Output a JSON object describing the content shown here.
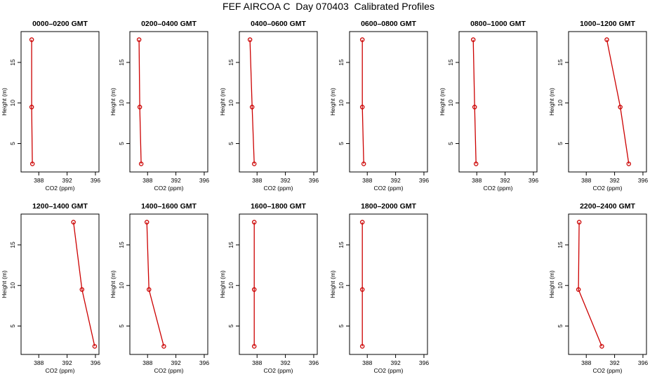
{
  "figure_title": "FEF AIRCOA C  Day 070403  Calibrated Profiles",
  "chart_data": [
    {
      "type": "line",
      "title": "0000–0200 GMT",
      "xlabel": "CO2 (ppm)",
      "ylabel": "Height (m)",
      "xlim": [
        385.5,
        396.5
      ],
      "ylim": [
        1.5,
        18.8
      ],
      "xticks": [
        388,
        392,
        396
      ],
      "yticks": [
        5,
        10,
        15
      ],
      "points": [
        {
          "x": 387.0,
          "y": 17.8
        },
        {
          "x": 387.0,
          "y": 9.5
        },
        {
          "x": 387.1,
          "y": 2.5
        }
      ]
    },
    {
      "type": "line",
      "title": "0200–0400 GMT",
      "xlabel": "CO2 (ppm)",
      "ylabel": "Height (m)",
      "xlim": [
        385.5,
        396.5
      ],
      "ylim": [
        1.5,
        18.8
      ],
      "xticks": [
        388,
        392,
        396
      ],
      "yticks": [
        5,
        10,
        15
      ],
      "points": [
        {
          "x": 386.8,
          "y": 17.8
        },
        {
          "x": 386.9,
          "y": 9.5
        },
        {
          "x": 387.1,
          "y": 2.5
        }
      ]
    },
    {
      "type": "line",
      "title": "0400–0600 GMT",
      "xlabel": "CO2 (ppm)",
      "ylabel": "Height (m)",
      "xlim": [
        385.5,
        396.5
      ],
      "ylim": [
        1.5,
        18.8
      ],
      "xticks": [
        388,
        392,
        396
      ],
      "yticks": [
        5,
        10,
        15
      ],
      "points": [
        {
          "x": 387.0,
          "y": 17.8
        },
        {
          "x": 387.3,
          "y": 9.5
        },
        {
          "x": 387.6,
          "y": 2.5
        }
      ]
    },
    {
      "type": "line",
      "title": "0600–0800 GMT",
      "xlabel": "CO2 (ppm)",
      "ylabel": "Height (m)",
      "xlim": [
        385.5,
        396.5
      ],
      "ylim": [
        1.5,
        18.8
      ],
      "xticks": [
        388,
        392,
        396
      ],
      "yticks": [
        5,
        10,
        15
      ],
      "points": [
        {
          "x": 387.3,
          "y": 17.8
        },
        {
          "x": 387.3,
          "y": 9.5
        },
        {
          "x": 387.5,
          "y": 2.5
        }
      ]
    },
    {
      "type": "line",
      "title": "0800–1000 GMT",
      "xlabel": "CO2 (ppm)",
      "ylabel": "Height (m)",
      "xlim": [
        385.5,
        396.5
      ],
      "ylim": [
        1.5,
        18.8
      ],
      "xticks": [
        388,
        392,
        396
      ],
      "yticks": [
        5,
        10,
        15
      ],
      "points": [
        {
          "x": 387.5,
          "y": 17.8
        },
        {
          "x": 387.7,
          "y": 9.5
        },
        {
          "x": 387.9,
          "y": 2.5
        }
      ]
    },
    {
      "type": "line",
      "title": "1000–1200 GMT",
      "xlabel": "CO2 (ppm)",
      "ylabel": "Height (m)",
      "xlim": [
        385.5,
        396.5
      ],
      "ylim": [
        1.5,
        18.8
      ],
      "xticks": [
        388,
        392,
        396
      ],
      "yticks": [
        5,
        10,
        15
      ],
      "points": [
        {
          "x": 390.9,
          "y": 17.8
        },
        {
          "x": 392.8,
          "y": 9.5
        },
        {
          "x": 394.0,
          "y": 2.5
        }
      ]
    },
    {
      "type": "line",
      "title": "1200–1400 GMT",
      "xlabel": "CO2 (ppm)",
      "ylabel": "Height (m)",
      "xlim": [
        385.5,
        396.5
      ],
      "ylim": [
        1.5,
        18.8
      ],
      "xticks": [
        388,
        392,
        396
      ],
      "yticks": [
        5,
        10,
        15
      ],
      "points": [
        {
          "x": 392.9,
          "y": 17.8
        },
        {
          "x": 394.1,
          "y": 9.5
        },
        {
          "x": 395.9,
          "y": 2.5
        }
      ]
    },
    {
      "type": "line",
      "title": "1400–1600 GMT",
      "xlabel": "CO2 (ppm)",
      "ylabel": "Height (m)",
      "xlim": [
        385.5,
        396.5
      ],
      "ylim": [
        1.5,
        18.8
      ],
      "xticks": [
        388,
        392,
        396
      ],
      "yticks": [
        5,
        10,
        15
      ],
      "points": [
        {
          "x": 387.9,
          "y": 17.8
        },
        {
          "x": 388.2,
          "y": 9.5
        },
        {
          "x": 390.3,
          "y": 2.5
        }
      ]
    },
    {
      "type": "line",
      "title": "1600–1800 GMT",
      "xlabel": "CO2 (ppm)",
      "ylabel": "Height (m)",
      "xlim": [
        385.5,
        396.5
      ],
      "ylim": [
        1.5,
        18.8
      ],
      "xticks": [
        388,
        392,
        396
      ],
      "yticks": [
        5,
        10,
        15
      ],
      "points": [
        {
          "x": 387.6,
          "y": 17.8
        },
        {
          "x": 387.6,
          "y": 9.5
        },
        {
          "x": 387.6,
          "y": 2.5
        }
      ]
    },
    {
      "type": "line",
      "title": "1800–2000 GMT",
      "xlabel": "CO2 (ppm)",
      "ylabel": "Height (m)",
      "xlim": [
        385.5,
        396.5
      ],
      "ylim": [
        1.5,
        18.8
      ],
      "xticks": [
        388,
        392,
        396
      ],
      "yticks": [
        5,
        10,
        15
      ],
      "points": [
        {
          "x": 387.3,
          "y": 17.8
        },
        {
          "x": 387.3,
          "y": 9.5
        },
        {
          "x": 387.3,
          "y": 2.5
        }
      ]
    },
    {
      "type": "line",
      "title": "2200–2400 GMT",
      "xlabel": "CO2 (ppm)",
      "ylabel": "Height (m)",
      "xlim": [
        385.5,
        396.5
      ],
      "ylim": [
        1.5,
        18.8
      ],
      "xticks": [
        388,
        392,
        396
      ],
      "yticks": [
        5,
        10,
        15
      ],
      "points": [
        {
          "x": 387.0,
          "y": 17.8
        },
        {
          "x": 386.9,
          "y": 9.5
        },
        {
          "x": 390.2,
          "y": 2.5
        }
      ]
    }
  ],
  "colors": {
    "series": "#cc0000",
    "axis": "#000000"
  }
}
